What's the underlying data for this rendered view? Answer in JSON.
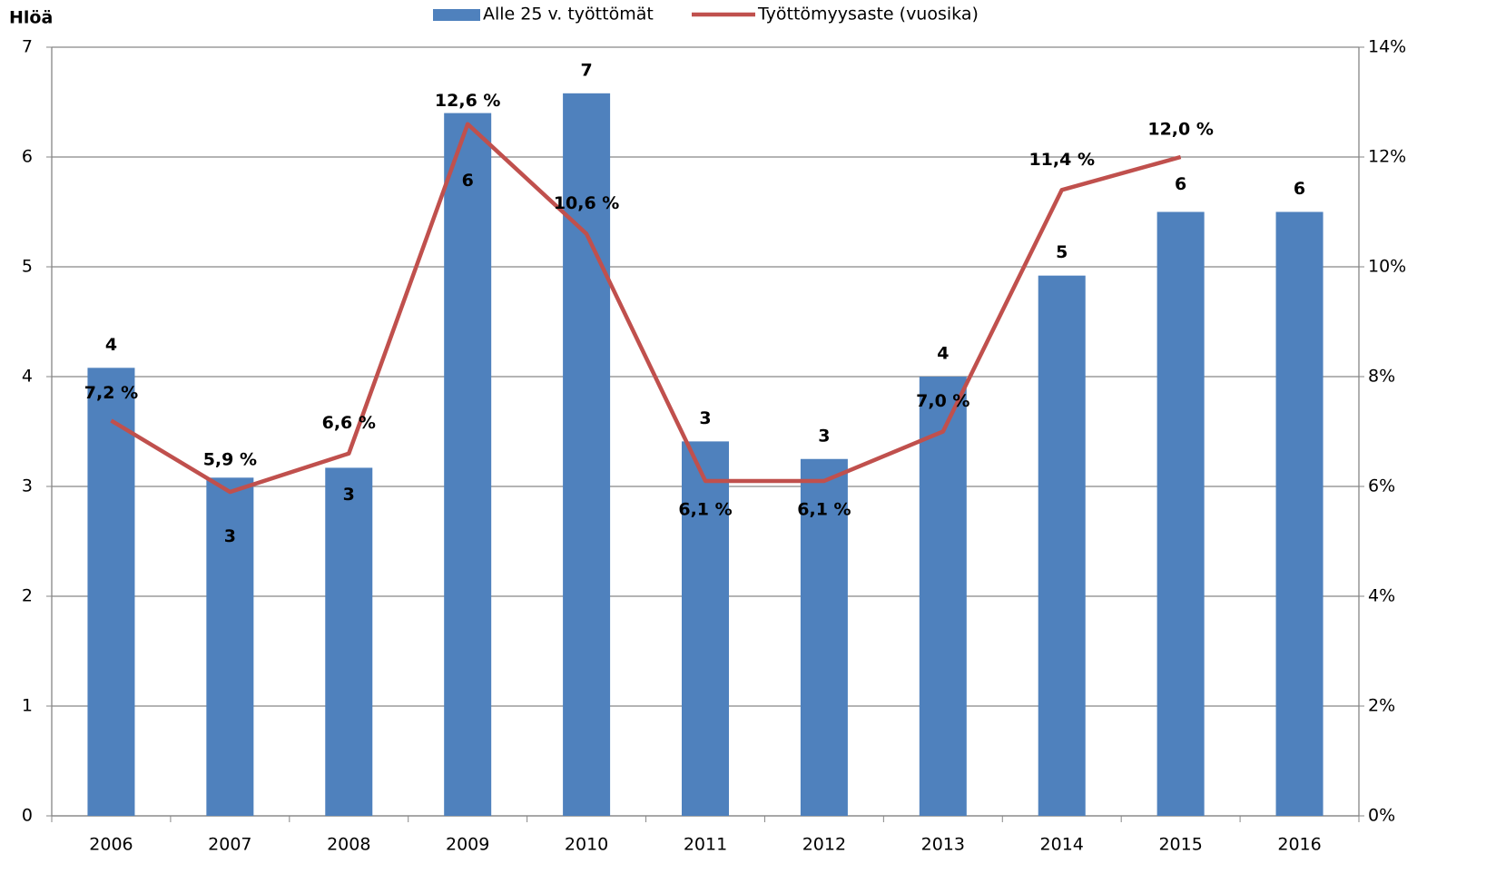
{
  "chart_data": {
    "type": "bar-line",
    "y_axis_label": "Hlöä",
    "categories": [
      "2006",
      "2007",
      "2008",
      "2009",
      "2010",
      "2011",
      "2012",
      "2013",
      "2014",
      "2015",
      "2016"
    ],
    "series": [
      {
        "name": "Alle 25 v. työttömät",
        "type": "bar",
        "color": "#4f81bd",
        "values": [
          4.08,
          3.08,
          3.17,
          6.4,
          6.58,
          3.41,
          3.25,
          4.0,
          4.92,
          5.5,
          5.5
        ],
        "value_labels": [
          "4",
          "3",
          "3",
          "6",
          "7",
          "3",
          "3",
          "4",
          "5",
          "6",
          "6"
        ]
      },
      {
        "name": "Työttömyysaste (vuosika)",
        "type": "line",
        "axis": "y2",
        "color": "#c0504d",
        "values": [
          7.2,
          5.9,
          6.6,
          12.6,
          10.6,
          6.1,
          6.1,
          7.0,
          11.4,
          12.0,
          null
        ],
        "value_labels": [
          "7,2 %",
          "5,9 %",
          "6,6 %",
          "12,6 %",
          "10,6 %",
          "6,1 %",
          "6,1 %",
          "7,0 %",
          "11,4 %",
          "12,0 %",
          null
        ]
      }
    ],
    "ylim": [
      0,
      7
    ],
    "yticks": [
      0,
      1,
      2,
      3,
      4,
      5,
      6,
      7
    ],
    "y2lim": [
      0,
      14
    ],
    "y2ticks": [
      {
        "value": 0,
        "label": "0%"
      },
      {
        "value": 2,
        "label": "2%"
      },
      {
        "value": 4,
        "label": "4%"
      },
      {
        "value": 6,
        "label": "6%"
      },
      {
        "value": 8,
        "label": "8%"
      },
      {
        "value": 10,
        "label": "10%"
      },
      {
        "value": 12,
        "label": "12%"
      },
      {
        "value": 14,
        "label": "14%"
      }
    ],
    "grid": true
  }
}
